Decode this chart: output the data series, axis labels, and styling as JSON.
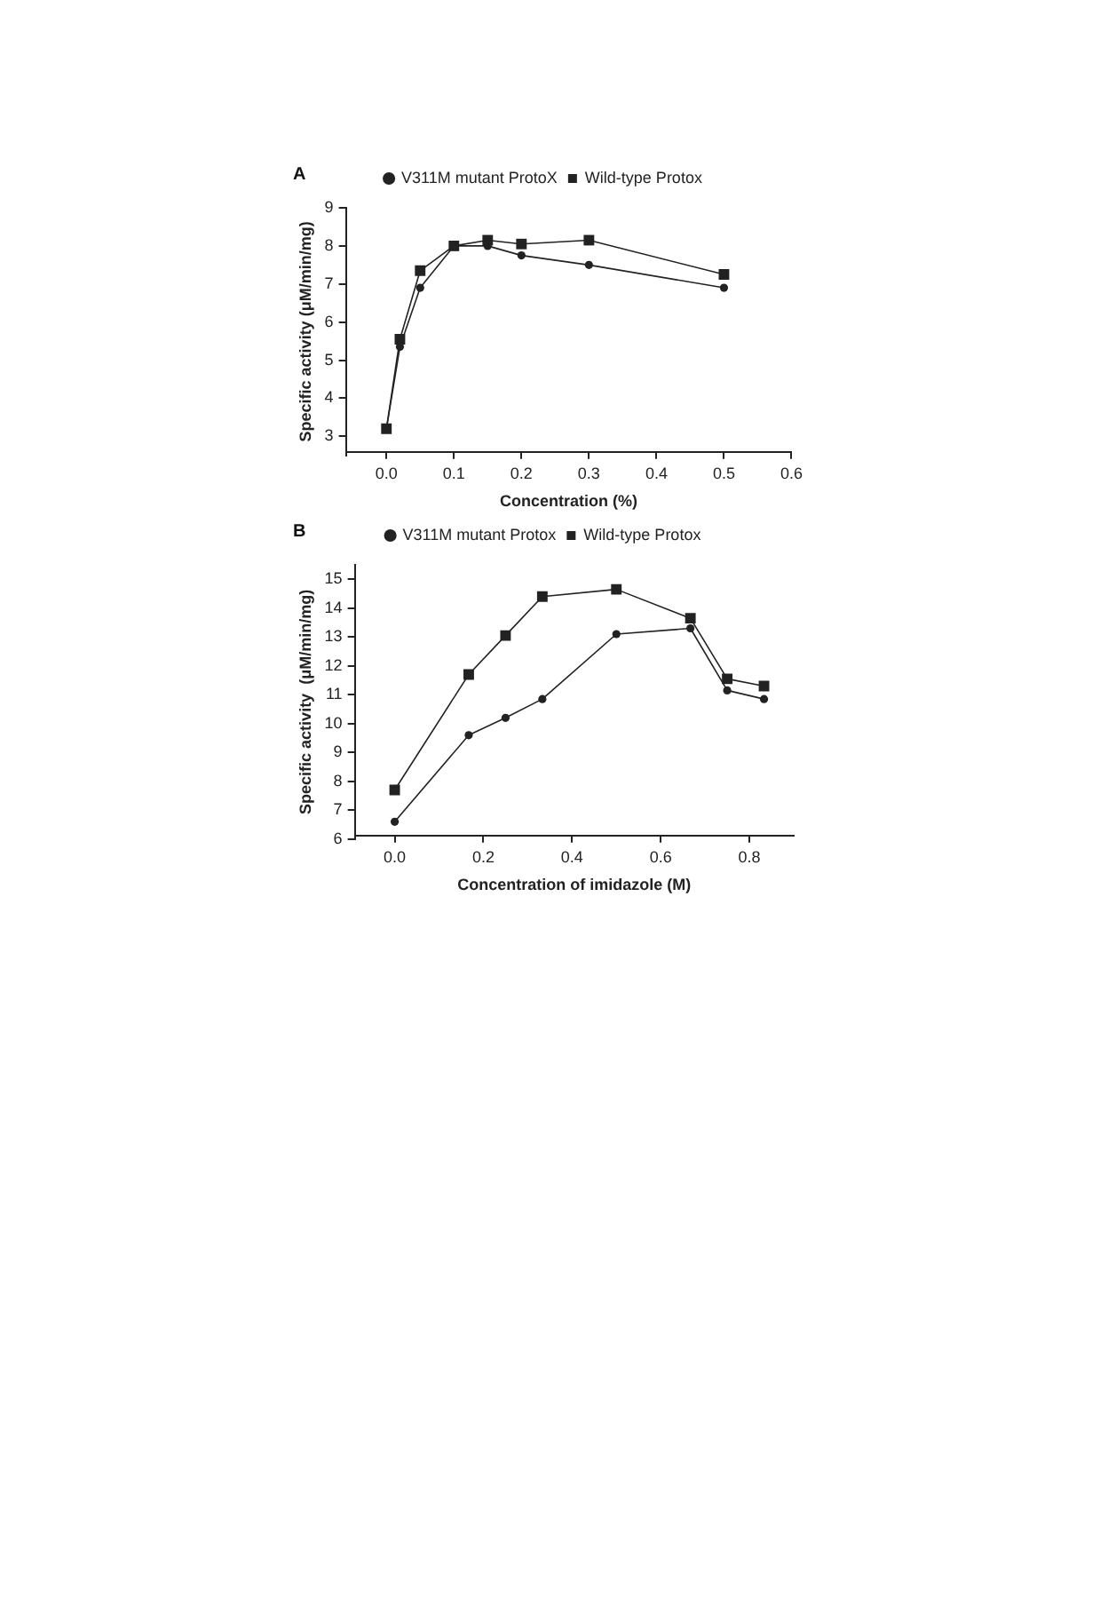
{
  "chart_data": [
    {
      "type": "line",
      "title": "A",
      "xlabel": "Concentration (%)",
      "ylabel": "Specific activity (μM/min/mg)",
      "x": [
        0,
        0.02,
        0.05,
        0.1,
        0.15,
        0.2,
        0.3,
        0.5
      ],
      "series": [
        {
          "name": "Wild-type Protox",
          "color": "#222222",
          "marker": "square",
          "values": [
            3.2,
            5.55,
            7.35,
            8.0,
            8.15,
            8.05,
            8.15,
            7.25
          ]
        },
        {
          "name": "V311M mutant ProtoX",
          "color": "#222222",
          "marker": "circle",
          "values": [
            3.2,
            5.35,
            6.9,
            8.0,
            8.0,
            7.75,
            7.5,
            6.9
          ]
        }
      ],
      "xlim": [
        -0.06,
        0.6
      ],
      "xticks": [
        {
          "value": 0,
          "label": "0.0"
        },
        0.1,
        0.2,
        0.3,
        0.4,
        0.5,
        0.6
      ],
      "ylim": [
        2.5,
        9
      ],
      "yticks": [
        3,
        4,
        5,
        6,
        7,
        8,
        9
      ],
      "grid": false,
      "legend": "top"
    },
    {
      "type": "line",
      "title": "B",
      "xlabel": "Concentration of imidazole (M)",
      "ylabel": "Specific activity  (μM/min/mg)",
      "x": [
        0,
        0.167,
        0.25,
        0.333,
        0.5,
        0.667,
        0.75,
        0.833
      ],
      "series": [
        {
          "name": "Wild-type Protox",
          "color": "#222222",
          "marker": "square",
          "values": [
            7.7,
            11.7,
            13.05,
            14.4,
            14.65,
            13.65,
            11.55,
            11.3
          ]
        },
        {
          "name": "V311M mutant Protox",
          "color": "#222222",
          "marker": "circle",
          "values": [
            6.6,
            9.6,
            10.2,
            10.85,
            13.1,
            13.3,
            11.15,
            10.85
          ]
        }
      ],
      "xlim": [
        -0.09,
        0.9
      ],
      "xticks": [
        {
          "value": 0,
          "label": "0.0"
        },
        0.2,
        0.4,
        0.6,
        0.8
      ],
      "ylim": [
        6,
        15.5
      ],
      "yticks": [
        6,
        7,
        8,
        9,
        10,
        11,
        12,
        13,
        14,
        15
      ],
      "grid": false,
      "legend": "top"
    }
  ]
}
